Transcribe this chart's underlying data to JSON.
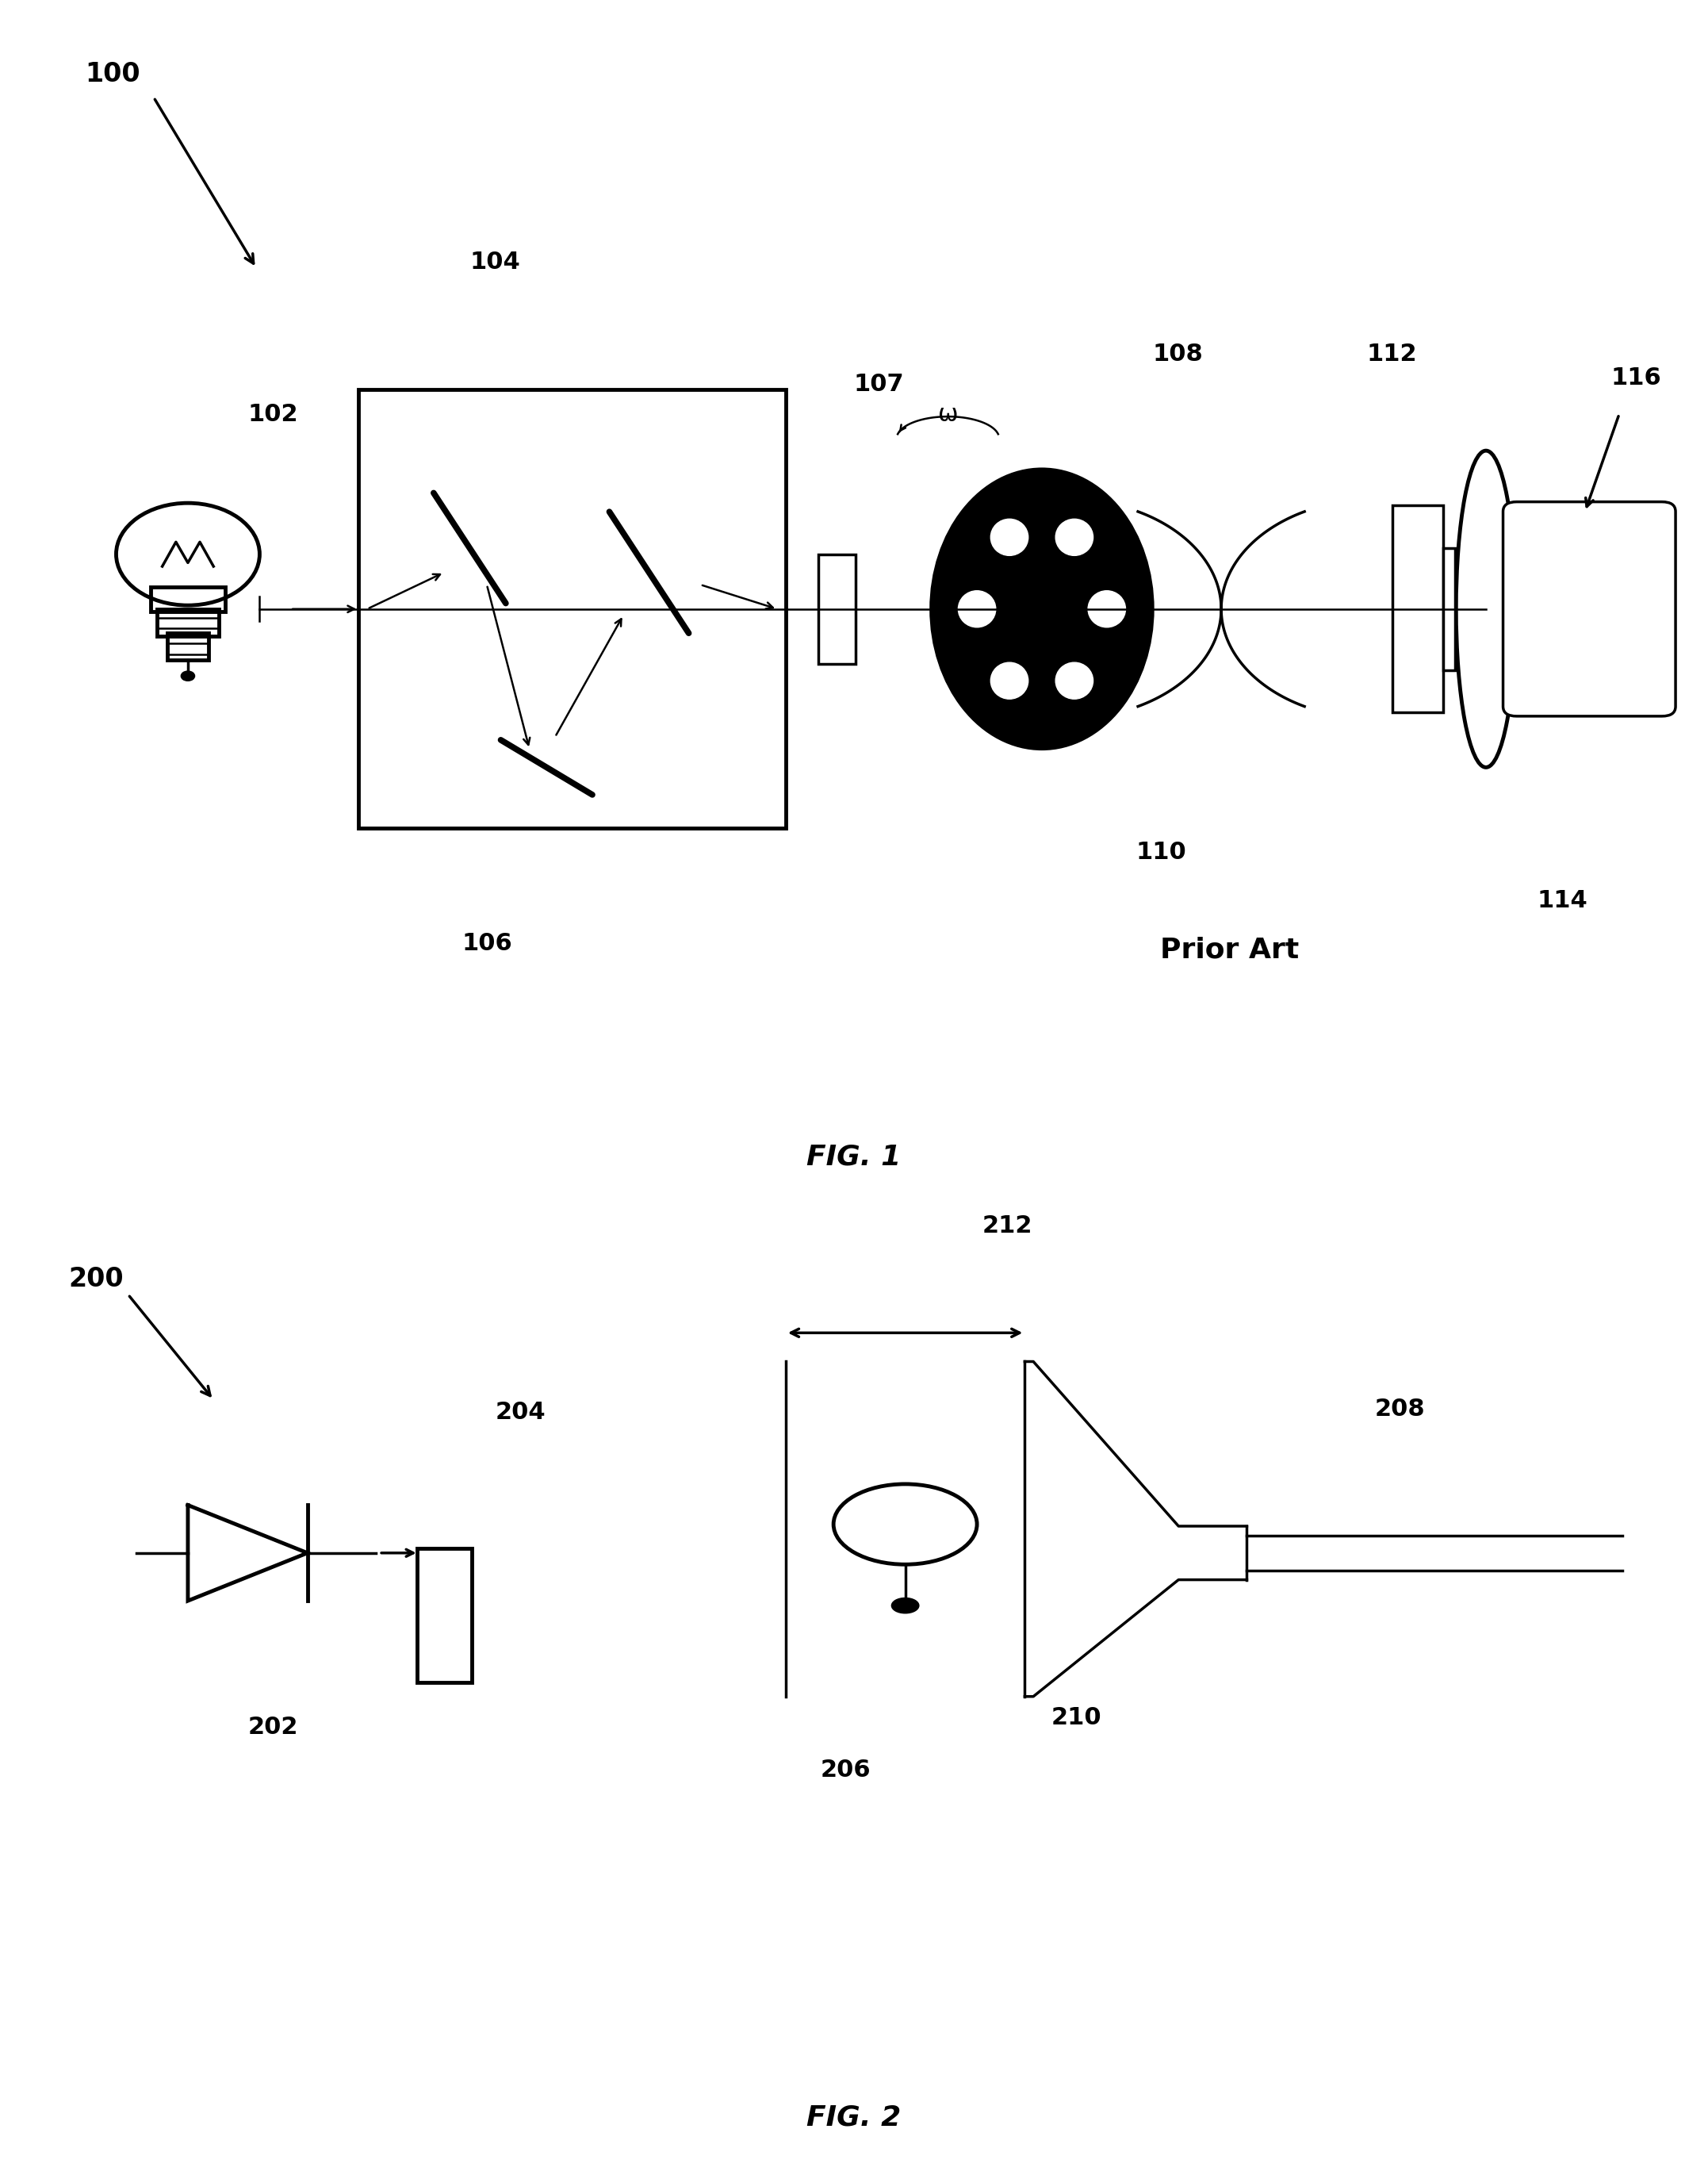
{
  "bg_color": "#ffffff",
  "line_color": "#000000",
  "lw_thick": 3.5,
  "lw_med": 2.5,
  "lw_thin": 1.8,
  "fig1": {
    "title": "FIG. 1",
    "prior_art": "Prior Art",
    "label_100": "100",
    "label_102": "102",
    "label_104": "104",
    "label_106": "106",
    "label_107": "107",
    "label_108": "108",
    "label_110": "110",
    "label_112": "112",
    "label_114": "114",
    "label_116": "116"
  },
  "fig2": {
    "title": "FIG. 2",
    "label_200": "200",
    "label_202": "202",
    "label_204": "204",
    "label_206": "206",
    "label_208": "208",
    "label_210": "210",
    "label_212": "212"
  }
}
